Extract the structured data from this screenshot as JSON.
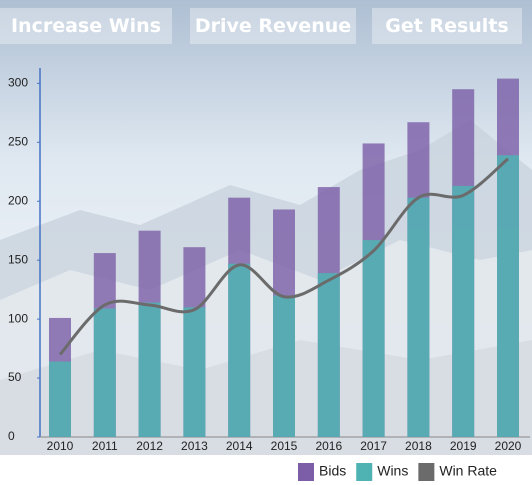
{
  "nav": [
    "Increase Wins",
    "Drive Revenue",
    "Get Results"
  ],
  "chart_data": {
    "type": "bar-line",
    "categories": [
      "2010",
      "2011",
      "2012",
      "2013",
      "2014",
      "2015",
      "2016",
      "2017",
      "2018",
      "2019",
      "2020"
    ],
    "series": [
      {
        "name": "Bids",
        "type": "bar",
        "color": "#7b5ea7",
        "values": [
          101,
          156,
          175,
          161,
          203,
          193,
          212,
          249,
          267,
          295,
          304
        ]
      },
      {
        "name": "Wins",
        "type": "bar",
        "color": "#4fb3b3",
        "values": [
          64,
          109,
          114,
          110,
          147,
          120,
          139,
          167,
          203,
          213,
          239
        ]
      },
      {
        "name": "Win Rate",
        "type": "line",
        "color": "#6b6b6b",
        "values": [
          70,
          112,
          112,
          108,
          146,
          119,
          133,
          158,
          203,
          205,
          236
        ]
      }
    ],
    "ylim": [
      0,
      313
    ],
    "yticks": [
      0,
      50,
      100,
      150,
      200,
      250,
      300
    ],
    "legend": "bottom-right"
  }
}
